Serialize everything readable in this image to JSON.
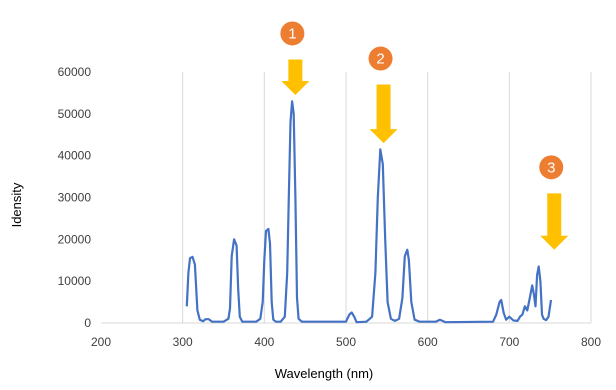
{
  "chart_data": {
    "type": "line",
    "title": "",
    "xlabel": "Wavelength (nm)",
    "ylabel": "Idensity",
    "xlim": [
      200,
      800
    ],
    "ylim": [
      0,
      60000
    ],
    "x_ticks": [
      200,
      300,
      400,
      500,
      600,
      700,
      800
    ],
    "y_ticks": [
      0,
      10000,
      20000,
      30000,
      40000,
      50000,
      60000
    ],
    "grid": "vertical",
    "series": [
      {
        "color": "#4472c4",
        "points": [
          [
            305,
            4000
          ],
          [
            307,
            12000
          ],
          [
            309,
            15500
          ],
          [
            312,
            15800
          ],
          [
            315,
            14000
          ],
          [
            318,
            3000
          ],
          [
            321,
            800
          ],
          [
            325,
            400
          ],
          [
            328,
            900
          ],
          [
            332,
            900
          ],
          [
            336,
            300
          ],
          [
            350,
            300
          ],
          [
            356,
            1000
          ],
          [
            358,
            3500
          ],
          [
            360,
            16000
          ],
          [
            363,
            20000
          ],
          [
            366,
            18500
          ],
          [
            368,
            8000
          ],
          [
            370,
            1500
          ],
          [
            373,
            300
          ],
          [
            390,
            300
          ],
          [
            395,
            1000
          ],
          [
            398,
            5000
          ],
          [
            400,
            15000
          ],
          [
            402,
            22000
          ],
          [
            405,
            22500
          ],
          [
            407,
            19000
          ],
          [
            409,
            5000
          ],
          [
            411,
            800
          ],
          [
            414,
            300
          ],
          [
            420,
            300
          ],
          [
            425,
            1500
          ],
          [
            428,
            12000
          ],
          [
            430,
            30000
          ],
          [
            432,
            48000
          ],
          [
            434,
            53000
          ],
          [
            436,
            50000
          ],
          [
            438,
            30000
          ],
          [
            440,
            6000
          ],
          [
            442,
            1000
          ],
          [
            446,
            300
          ],
          [
            500,
            300
          ],
          [
            504,
            2000
          ],
          [
            507,
            2500
          ],
          [
            510,
            1500
          ],
          [
            513,
            200
          ],
          [
            525,
            300
          ],
          [
            532,
            1500
          ],
          [
            536,
            12000
          ],
          [
            539,
            30000
          ],
          [
            542,
            41500
          ],
          [
            545,
            38000
          ],
          [
            548,
            20000
          ],
          [
            551,
            5000
          ],
          [
            555,
            1000
          ],
          [
            560,
            500
          ],
          [
            565,
            1000
          ],
          [
            569,
            6000
          ],
          [
            572,
            16000
          ],
          [
            575,
            17500
          ],
          [
            577,
            15000
          ],
          [
            580,
            5000
          ],
          [
            584,
            800
          ],
          [
            590,
            300
          ],
          [
            610,
            300
          ],
          [
            615,
            800
          ],
          [
            622,
            200
          ],
          [
            680,
            300
          ],
          [
            684,
            2000
          ],
          [
            688,
            5000
          ],
          [
            690,
            5500
          ],
          [
            693,
            2500
          ],
          [
            696,
            800
          ],
          [
            700,
            1500
          ],
          [
            705,
            600
          ],
          [
            710,
            500
          ],
          [
            713,
            1500
          ],
          [
            716,
            2000
          ],
          [
            719,
            4000
          ],
          [
            722,
            3000
          ],
          [
            725,
            6000
          ],
          [
            728,
            9000
          ],
          [
            730,
            7000
          ],
          [
            732,
            4000
          ],
          [
            734,
            11500
          ],
          [
            736,
            13500
          ],
          [
            738,
            10000
          ],
          [
            740,
            2000
          ],
          [
            742,
            1000
          ],
          [
            745,
            700
          ],
          [
            748,
            1500
          ],
          [
            751,
            5500
          ]
        ]
      }
    ],
    "annotations": [
      {
        "label": "1",
        "x": 438,
        "y": 54500,
        "arrow_from_y": 63000,
        "arrow_to_y": 54500
      },
      {
        "label": "2",
        "x": 546,
        "y": 42500,
        "arrow_from_y": 57000,
        "arrow_to_y": 43000
      },
      {
        "label": "3",
        "x": 755,
        "y": 20000,
        "arrow_from_y": 31000,
        "arrow_to_y": 17500
      }
    ],
    "annotation_colors": {
      "badge": "#ed7d31",
      "arrow": "#ffc000"
    },
    "axis_color": "#d9d9d9"
  }
}
